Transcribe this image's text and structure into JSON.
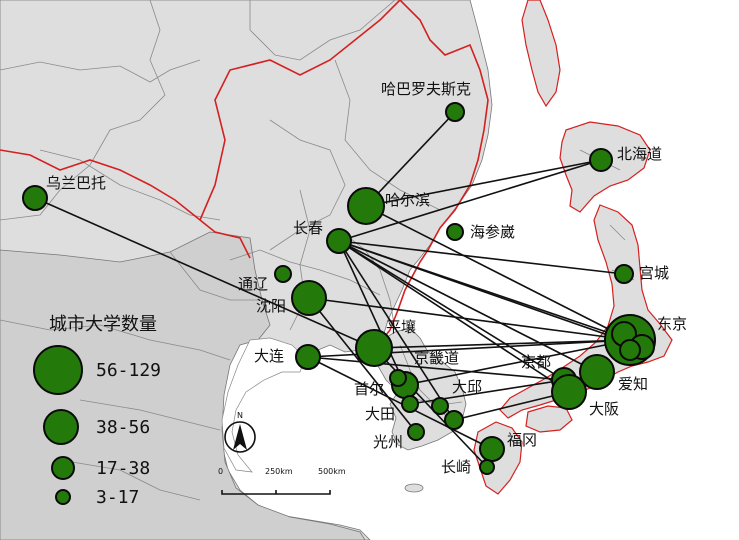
{
  "colors": {
    "sea": "#ffffff",
    "land": "#dedede",
    "neighbor_land": "#cfcfcf",
    "province_border": "#8a8a8a",
    "national_border": "#d42020",
    "city_fill": "#237a0b",
    "city_stroke": "#0a0a0a",
    "link": "#111111"
  },
  "legend": {
    "title": "城市大学数量",
    "classes": [
      {
        "label": "56-129"
      },
      {
        "label": "38-56"
      },
      {
        "label": "17-38"
      },
      {
        "label": "3-17"
      }
    ]
  },
  "north_arrow": {
    "label": "N"
  },
  "scale_bar": {
    "labels": [
      "0",
      "250km",
      "500km"
    ]
  },
  "cities": [
    {
      "id": "harbarovsk",
      "name": "哈巴罗夫斯克"
    },
    {
      "id": "hokkaido",
      "name": "北海道"
    },
    {
      "id": "ulaanbaatar",
      "name": "乌兰巴托"
    },
    {
      "id": "harbin",
      "name": "哈尔滨"
    },
    {
      "id": "changchun",
      "name": "长春"
    },
    {
      "id": "vladivostok",
      "name": "海参崴"
    },
    {
      "id": "miyagi",
      "name": "宫城"
    },
    {
      "id": "tongliao",
      "name": "通辽"
    },
    {
      "id": "shenyang",
      "name": "沈阳"
    },
    {
      "id": "tokyo",
      "name": "东京"
    },
    {
      "id": "pyongyang",
      "name": "平壤"
    },
    {
      "id": "dalian",
      "name": "大连"
    },
    {
      "id": "gyeonggi",
      "name": "京畿道"
    },
    {
      "id": "kyoto",
      "name": "京都"
    },
    {
      "id": "aichi",
      "name": "爱知"
    },
    {
      "id": "seoul",
      "name": "首尔"
    },
    {
      "id": "daegu",
      "name": "大邱"
    },
    {
      "id": "daejeon",
      "name": "大田"
    },
    {
      "id": "osaka",
      "name": "大阪"
    },
    {
      "id": "gwangju",
      "name": "光州"
    },
    {
      "id": "fukuoka",
      "name": "福冈"
    },
    {
      "id": "nagasaki",
      "name": "长崎"
    }
  ]
}
